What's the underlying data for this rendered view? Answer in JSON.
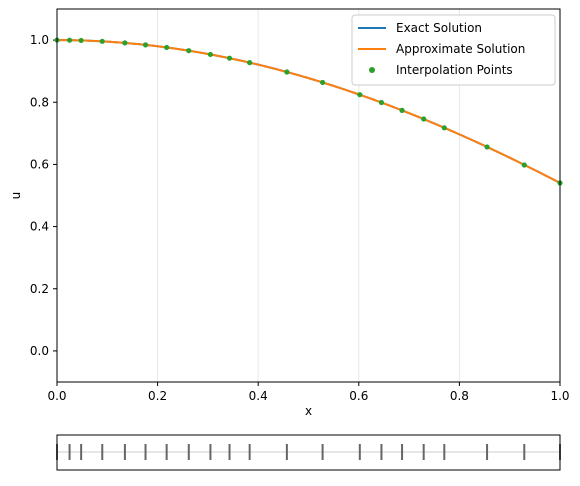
{
  "chart_data": [
    {
      "type": "line",
      "xlabel": "x",
      "ylabel": "u",
      "xlim": [
        0.0,
        1.0
      ],
      "ylim": [
        -0.1,
        1.1
      ],
      "x_ticks": [
        "0.0",
        "0.2",
        "0.4",
        "0.6",
        "0.8",
        "1.0"
      ],
      "y_ticks": [
        "0.0",
        "0.2",
        "0.4",
        "0.6",
        "0.8",
        "1.0"
      ],
      "grid": "faint vertical lines at x ticks",
      "legend_position": "top-right",
      "series": [
        {
          "name": "Exact Solution",
          "kind": "line",
          "color": "#1f77b4",
          "function": "cos"
        },
        {
          "name": "Approximate Solution",
          "kind": "line",
          "color": "#ff7f0e",
          "function": "cos"
        },
        {
          "name": "Interpolation Points",
          "kind": "points",
          "color": "#2ca02c",
          "x": [
            0.0,
            0.025,
            0.048,
            0.09,
            0.135,
            0.176,
            0.218,
            0.262,
            0.305,
            0.343,
            0.383,
            0.457,
            0.528,
            0.602,
            0.645,
            0.686,
            0.729,
            0.77,
            0.855,
            0.929,
            1.0
          ],
          "y": [
            1.0,
            0.9997,
            0.9988,
            0.996,
            0.9909,
            0.9846,
            0.9763,
            0.9659,
            0.9538,
            0.9418,
            0.9275,
            0.8974,
            0.8638,
            0.8243,
            0.7991,
            0.7738,
            0.7461,
            0.7178,
            0.6562,
            0.5981,
            0.5403
          ]
        }
      ]
    },
    {
      "type": "strip",
      "xlim": [
        0.0,
        1.0
      ],
      "x": [
        0.0,
        0.025,
        0.048,
        0.09,
        0.135,
        0.176,
        0.218,
        0.262,
        0.305,
        0.343,
        0.383,
        0.457,
        0.528,
        0.602,
        0.645,
        0.686,
        0.729,
        0.77,
        0.855,
        0.929,
        1.0
      ],
      "line_color": "#cccccc",
      "marker_color": "#666666"
    }
  ]
}
